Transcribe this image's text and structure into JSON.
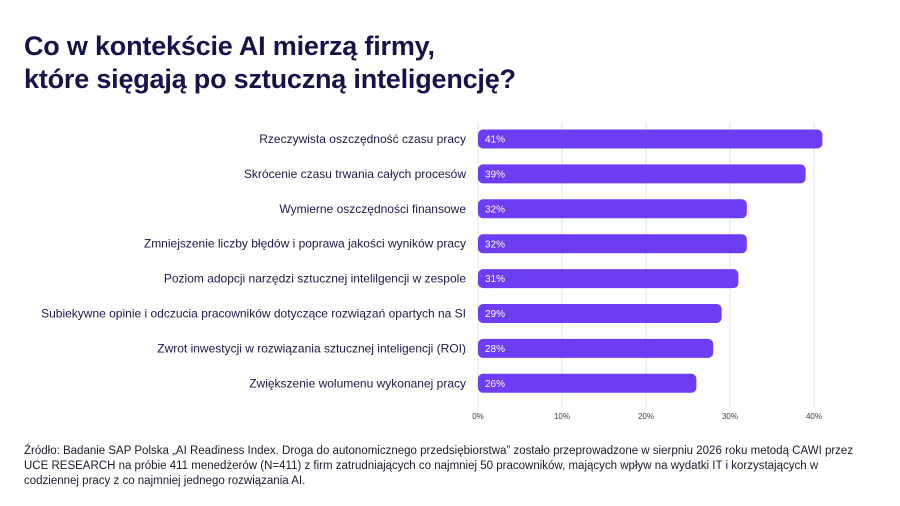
{
  "title_lines": [
    "Co w kontekście AI mierzą firmy,",
    "które sięgają po sztuczną inteligencję?"
  ],
  "source": "Źródło: Badanie SAP Polska „AI Readiness Index. Droga do autonomicznego przedsiębiorstwa” zostało przeprowadzone w sierpniu 2026 roku metodą CAWI przez UCE RESEARCH na próbie 411 menedżerów (N=411) z firm zatrudniających co najmniej 50 pracowników, mających wpływ na wydatki IT i korzystających w codziennej pracy z co najmniej jednego rozwiązania AI.",
  "colors": {
    "bar": "#6c3df5",
    "grid": "#e2e2e8",
    "text": "#1a1a4b",
    "bar_label": "#ffffff"
  },
  "chart_data": {
    "type": "bar",
    "orientation": "horizontal",
    "categories": [
      "Rzeczywista oszczędność czasu pracy",
      "Skrócenie czasu trwania całych procesów",
      "Wymierne oszczędności finansowe",
      "Zmniejszenie liczby błędów i poprawa jakości wyników pracy",
      "Poziom adopcji narzędzi sztucznej intelilgencji w zespole",
      "Subiekywne opinie i odczucia pracowników dotyczące rozwiązań opartych na SI",
      "Zwrot inwestycji w rozwiązania sztucznej inteligencji (ROI)",
      "Zwiększenie wolumenu wykonanej pracy"
    ],
    "values": [
      41,
      39,
      32,
      32,
      31,
      29,
      28,
      26
    ],
    "value_labels": [
      "41%",
      "39%",
      "32%",
      "32%",
      "31%",
      "29%",
      "28%",
      "26%"
    ],
    "xlim": [
      0,
      41
    ],
    "xticks": [
      0,
      10,
      20,
      30,
      40
    ],
    "xtick_labels": [
      "0%",
      "10%",
      "20%",
      "30%",
      "40%"
    ],
    "grid": true,
    "title": "",
    "xlabel": "",
    "ylabel": ""
  }
}
